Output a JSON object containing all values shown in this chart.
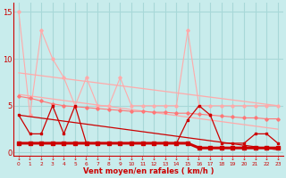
{
  "x": [
    0,
    1,
    2,
    3,
    4,
    5,
    6,
    7,
    8,
    9,
    10,
    11,
    12,
    13,
    14,
    15,
    16,
    17,
    18,
    19,
    20,
    21,
    22,
    23
  ],
  "line_pink_jagged": [
    15,
    4,
    13,
    10,
    8,
    5,
    8,
    5,
    5,
    8,
    5,
    5,
    5,
    5,
    5,
    13,
    5,
    5,
    5,
    5,
    5,
    5,
    5,
    5
  ],
  "line_mid_flat": [
    6,
    5.8,
    5.5,
    5.2,
    5.0,
    4.9,
    4.8,
    4.7,
    4.6,
    4.5,
    4.4,
    4.4,
    4.3,
    4.3,
    4.2,
    4.2,
    4.1,
    4.0,
    3.9,
    3.8,
    3.7,
    3.7,
    3.6,
    3.6
  ],
  "slope_top_start": 8.5,
  "slope_top_end": 5.0,
  "slope_bot_start": 6.2,
  "slope_bot_end": 2.5,
  "slope_x1": 0,
  "slope_x2": 23,
  "line_dark_jagged": [
    4,
    2,
    2,
    5,
    2,
    5,
    1,
    1,
    1,
    1,
    1,
    1,
    1,
    1,
    1,
    3.5,
    5,
    4,
    1,
    1,
    1,
    2,
    2,
    1
  ],
  "line_mean": [
    1,
    1,
    1,
    1,
    1,
    1,
    1,
    1,
    1,
    1,
    1,
    1,
    1,
    1,
    1,
    1,
    0.5,
    0.5,
    0.5,
    0.5,
    0.5,
    0.5,
    0.5,
    0.5
  ],
  "color_dark_red": "#cc0000",
  "color_light_red": "#ffaaaa",
  "color_mid_red": "#ff7777",
  "color_dashed_red": "#ee4444",
  "background": "#c8ecec",
  "grid_color": "#a8d8d8",
  "xlabel": "Vent moyen/en rafales ( km/h )",
  "ylim": [
    -0.3,
    16
  ],
  "yticks": [
    0,
    5,
    10,
    15
  ],
  "xticks": [
    0,
    1,
    2,
    3,
    4,
    5,
    6,
    7,
    8,
    9,
    10,
    11,
    12,
    13,
    14,
    15,
    16,
    17,
    18,
    19,
    20,
    21,
    22,
    23
  ]
}
